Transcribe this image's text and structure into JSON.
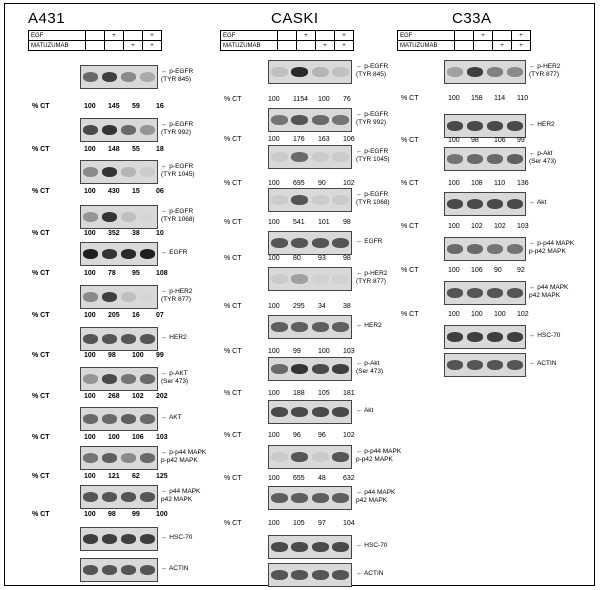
{
  "treatment": {
    "egf": "EGF",
    "matuzumab": "MATUZUMAB",
    "plus": "+"
  },
  "ct_label": "% CT",
  "panels": [
    {
      "id": "a431",
      "title": "A431",
      "bold": true,
      "blots": [
        {
          "label": [
            "p-EGFR",
            "(TYR 845)"
          ],
          "intensities": [
            0.6,
            0.8,
            0.45,
            0.3
          ],
          "quant": [
            "100",
            "145",
            "59",
            "16"
          ]
        },
        {
          "label": [
            "p-EGFR",
            "(TYR 992)"
          ],
          "intensities": [
            0.75,
            0.85,
            0.6,
            0.4
          ],
          "quant": [
            "100",
            "148",
            "55",
            "18"
          ]
        },
        {
          "label": [
            "p-EGFR",
            "(TYR 1045)"
          ],
          "intensities": [
            0.45,
            0.85,
            0.25,
            0.15
          ],
          "quant": [
            "100",
            "430",
            "15",
            "06"
          ]
        },
        {
          "label": [
            "p-EGFR",
            "(TYR 1068)"
          ],
          "intensities": [
            0.4,
            0.85,
            0.2,
            0.1
          ],
          "quant": [
            "100",
            "352",
            "38",
            "10"
          ]
        },
        {
          "label": [
            "EGFR"
          ],
          "intensities": [
            0.95,
            0.85,
            0.9,
            0.95
          ],
          "quant": [
            "100",
            "78",
            "95",
            "108"
          ]
        },
        {
          "label": [
            "p-HER2",
            "(TYR 877)"
          ],
          "intensities": [
            0.45,
            0.8,
            0.2,
            0.1
          ],
          "quant": [
            "100",
            "205",
            "16",
            "07"
          ]
        },
        {
          "label": [
            "HER2"
          ],
          "intensities": [
            0.7,
            0.7,
            0.7,
            0.7
          ],
          "quant": [
            "100",
            "98",
            "100",
            "99"
          ]
        },
        {
          "label": [
            "p-AKT",
            "(Ser 473)"
          ],
          "intensities": [
            0.4,
            0.75,
            0.55,
            0.6
          ],
          "quant": [
            "100",
            "268",
            "102",
            "202"
          ]
        },
        {
          "label": [
            "AKT"
          ],
          "intensities": [
            0.6,
            0.6,
            0.65,
            0.6
          ],
          "quant": [
            "100",
            "100",
            "106",
            "103"
          ]
        },
        {
          "label": [
            "p-p44 MAPK",
            "p-p42 MAPK"
          ],
          "intensities": [
            0.55,
            0.65,
            0.45,
            0.6
          ],
          "quant": [
            "100",
            "121",
            "62",
            "125"
          ]
        },
        {
          "label": [
            "p44 MAPK",
            "p42 MAPK"
          ],
          "intensities": [
            0.7,
            0.7,
            0.7,
            0.7
          ],
          "quant": [
            "100",
            "98",
            "99",
            "100"
          ]
        },
        {
          "label": [
            "HSC-70"
          ],
          "intensities": [
            0.8,
            0.8,
            0.8,
            0.8
          ],
          "quant": null
        },
        {
          "label": [
            "ACTIN"
          ],
          "intensities": [
            0.7,
            0.7,
            0.7,
            0.7
          ],
          "quant": null
        }
      ]
    },
    {
      "id": "caski",
      "title": "CASKI",
      "bold": false,
      "blots": [
        {
          "label": [
            "p-EGFR",
            "(TYR 845)"
          ],
          "intensities": [
            0.2,
            0.9,
            0.25,
            0.2
          ],
          "quant": [
            "100",
            "1154",
            "100",
            "76"
          ]
        },
        {
          "label": [
            "p-EGFR",
            "(TYR 992)"
          ],
          "intensities": [
            0.55,
            0.7,
            0.6,
            0.55
          ],
          "quant": [
            "100",
            "176",
            "163",
            "106"
          ]
        },
        {
          "label": [
            "p-EGFR",
            "(TYR 1045)"
          ],
          "intensities": [
            0.15,
            0.6,
            0.15,
            0.15
          ],
          "quant": [
            "100",
            "695",
            "90",
            "102"
          ]
        },
        {
          "label": [
            "p-EGFR",
            "(TYR 1068)"
          ],
          "intensities": [
            0.15,
            0.7,
            0.15,
            0.15
          ],
          "quant": [
            "100",
            "541",
            "101",
            "98"
          ]
        },
        {
          "label": [
            "EGFR"
          ],
          "intensities": [
            0.7,
            0.7,
            0.7,
            0.7
          ],
          "quant": [
            "100",
            "80",
            "93",
            "98"
          ]
        },
        {
          "label": [
            "p-HER2",
            "(TYR 877)"
          ],
          "intensities": [
            0.15,
            0.35,
            0.12,
            0.12
          ],
          "quant": [
            "100",
            "295",
            "34",
            "38"
          ]
        },
        {
          "label": [
            "HER2"
          ],
          "intensities": [
            0.65,
            0.65,
            0.65,
            0.65
          ],
          "quant": [
            "100",
            "99",
            "100",
            "103"
          ]
        },
        {
          "label": [
            "p-Akt",
            "(Ser 473)"
          ],
          "intensities": [
            0.6,
            0.85,
            0.75,
            0.8
          ],
          "quant": [
            "100",
            "188",
            "105",
            "181"
          ]
        },
        {
          "label": [
            "Akt"
          ],
          "intensities": [
            0.75,
            0.75,
            0.75,
            0.75
          ],
          "quant": [
            "100",
            "96",
            "96",
            "102"
          ]
        },
        {
          "label": [
            "p-p44 MAPK",
            "p-p42 MAPK"
          ],
          "intensities": [
            0.15,
            0.7,
            0.15,
            0.7
          ],
          "quant": [
            "100",
            "655",
            "48",
            "632"
          ]
        },
        {
          "label": [
            "p44 MAPK",
            "p42 MAPK"
          ],
          "intensities": [
            0.65,
            0.65,
            0.65,
            0.65
          ],
          "quant": [
            "100",
            "105",
            "97",
            "104"
          ]
        },
        {
          "label": [
            "HSC-70"
          ],
          "intensities": [
            0.75,
            0.75,
            0.75,
            0.75
          ],
          "quant": null
        },
        {
          "label": [
            "ACTIN"
          ],
          "intensities": [
            0.7,
            0.7,
            0.7,
            0.7
          ],
          "quant": null
        }
      ]
    },
    {
      "id": "c33a",
      "title": "C33A",
      "bold": false,
      "blots": [
        {
          "label": [
            "p-HER2",
            "(TYR 877)"
          ],
          "intensities": [
            0.35,
            0.8,
            0.5,
            0.45
          ],
          "quant": [
            "100",
            "158",
            "114",
            "110"
          ]
        },
        {
          "label": [
            "HER2"
          ],
          "intensities": [
            0.75,
            0.75,
            0.75,
            0.75
          ],
          "quant": [
            "100",
            "98",
            "106",
            "99"
          ]
        },
        {
          "label": [
            "p-Akt",
            "(Ser 473)"
          ],
          "intensities": [
            0.55,
            0.6,
            0.6,
            0.65
          ],
          "quant": [
            "100",
            "108",
            "110",
            "136"
          ]
        },
        {
          "label": [
            "Akt"
          ],
          "intensities": [
            0.75,
            0.75,
            0.75,
            0.75
          ],
          "quant": [
            "100",
            "102",
            "102",
            "103"
          ]
        },
        {
          "label": [
            "p-p44 MAPK",
            "p-p42 MAPK"
          ],
          "intensities": [
            0.6,
            0.6,
            0.55,
            0.55
          ],
          "quant": [
            "100",
            "106",
            "90",
            "92"
          ]
        },
        {
          "label": [
            "p44 MAPK",
            "p42 MAPK"
          ],
          "intensities": [
            0.7,
            0.7,
            0.7,
            0.7
          ],
          "quant": [
            "100",
            "100",
            "100",
            "102"
          ]
        },
        {
          "label": [
            "HSC-70"
          ],
          "intensities": [
            0.8,
            0.8,
            0.8,
            0.8
          ],
          "quant": null
        },
        {
          "label": [
            "ACTIN"
          ],
          "intensities": [
            0.7,
            0.7,
            0.7,
            0.7
          ],
          "quant": null
        }
      ]
    }
  ]
}
